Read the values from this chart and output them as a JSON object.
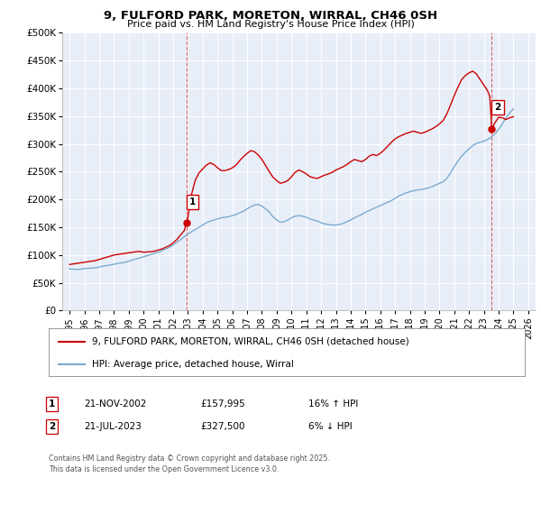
{
  "title": "9, FULFORD PARK, MORETON, WIRRAL, CH46 0SH",
  "subtitle": "Price paid vs. HM Land Registry's House Price Index (HPI)",
  "property_label": "9, FULFORD PARK, MORETON, WIRRAL, CH46 0SH (detached house)",
  "hpi_label": "HPI: Average price, detached house, Wirral",
  "property_color": "#cc0000",
  "hpi_color": "#7aabcf",
  "background_color": "#e8eef8",
  "grid_color": "#ffffff",
  "ylim": [
    0,
    500000
  ],
  "yticks": [
    0,
    50000,
    100000,
    150000,
    200000,
    250000,
    300000,
    350000,
    400000,
    450000,
    500000
  ],
  "ytick_labels": [
    "£0",
    "£50K",
    "£100K",
    "£150K",
    "£200K",
    "£250K",
    "£300K",
    "£350K",
    "£400K",
    "£450K",
    "£500K"
  ],
  "xlim_start": 1994.5,
  "xlim_end": 2026.5,
  "xticks": [
    1995,
    1996,
    1997,
    1998,
    1999,
    2000,
    2001,
    2002,
    2003,
    2004,
    2005,
    2006,
    2007,
    2008,
    2009,
    2010,
    2011,
    2012,
    2013,
    2014,
    2015,
    2016,
    2017,
    2018,
    2019,
    2020,
    2021,
    2022,
    2023,
    2024,
    2025,
    2026
  ],
  "marker1_x": 2002.89,
  "marker1_y": 157995,
  "marker1_label": "1",
  "marker1_date": "21-NOV-2002",
  "marker1_price": "£157,995",
  "marker1_hpi": "16% ↑ HPI",
  "marker2_x": 2023.54,
  "marker2_y": 327500,
  "marker2_label": "2",
  "marker2_date": "21-JUL-2023",
  "marker2_price": "£327,500",
  "marker2_hpi": "6% ↓ HPI",
  "footer": "Contains HM Land Registry data © Crown copyright and database right 2025.\nThis data is licensed under the Open Government Licence v3.0.",
  "hpi_data": [
    [
      1995.0,
      75000
    ],
    [
      1995.25,
      74500
    ],
    [
      1995.5,
      74000
    ],
    [
      1995.75,
      74500
    ],
    [
      1996.0,
      75500
    ],
    [
      1996.25,
      76000
    ],
    [
      1996.5,
      76500
    ],
    [
      1996.75,
      77000
    ],
    [
      1997.0,
      78500
    ],
    [
      1997.25,
      80000
    ],
    [
      1997.5,
      81000
    ],
    [
      1997.75,
      82000
    ],
    [
      1998.0,
      83500
    ],
    [
      1998.25,
      85000
    ],
    [
      1998.5,
      86000
    ],
    [
      1998.75,
      87000
    ],
    [
      1999.0,
      89000
    ],
    [
      1999.25,
      91000
    ],
    [
      1999.5,
      93000
    ],
    [
      1999.75,
      95000
    ],
    [
      2000.0,
      97000
    ],
    [
      2000.25,
      99000
    ],
    [
      2000.5,
      101000
    ],
    [
      2000.75,
      103000
    ],
    [
      2001.0,
      105000
    ],
    [
      2001.25,
      108000
    ],
    [
      2001.5,
      111000
    ],
    [
      2001.75,
      114000
    ],
    [
      2002.0,
      118000
    ],
    [
      2002.25,
      123000
    ],
    [
      2002.5,
      128000
    ],
    [
      2002.75,
      133000
    ],
    [
      2003.0,
      138000
    ],
    [
      2003.25,
      142000
    ],
    [
      2003.5,
      146000
    ],
    [
      2003.75,
      150000
    ],
    [
      2004.0,
      154000
    ],
    [
      2004.25,
      158000
    ],
    [
      2004.5,
      161000
    ],
    [
      2004.75,
      163000
    ],
    [
      2005.0,
      165000
    ],
    [
      2005.25,
      167000
    ],
    [
      2005.5,
      168000
    ],
    [
      2005.75,
      169000
    ],
    [
      2006.0,
      171000
    ],
    [
      2006.25,
      173000
    ],
    [
      2006.5,
      176000
    ],
    [
      2006.75,
      179000
    ],
    [
      2007.0,
      183000
    ],
    [
      2007.25,
      187000
    ],
    [
      2007.5,
      190000
    ],
    [
      2007.75,
      191000
    ],
    [
      2008.0,
      188000
    ],
    [
      2008.25,
      183000
    ],
    [
      2008.5,
      177000
    ],
    [
      2008.75,
      169000
    ],
    [
      2009.0,
      163000
    ],
    [
      2009.25,
      159000
    ],
    [
      2009.5,
      160000
    ],
    [
      2009.75,
      163000
    ],
    [
      2010.0,
      167000
    ],
    [
      2010.25,
      170000
    ],
    [
      2010.5,
      171000
    ],
    [
      2010.75,
      170000
    ],
    [
      2011.0,
      168000
    ],
    [
      2011.25,
      165000
    ],
    [
      2011.5,
      163000
    ],
    [
      2011.75,
      161000
    ],
    [
      2012.0,
      158000
    ],
    [
      2012.25,
      156000
    ],
    [
      2012.5,
      155000
    ],
    [
      2012.75,
      154000
    ],
    [
      2013.0,
      154000
    ],
    [
      2013.25,
      155000
    ],
    [
      2013.5,
      157000
    ],
    [
      2013.75,
      160000
    ],
    [
      2014.0,
      163000
    ],
    [
      2014.25,
      167000
    ],
    [
      2014.5,
      170000
    ],
    [
      2014.75,
      173000
    ],
    [
      2015.0,
      177000
    ],
    [
      2015.25,
      180000
    ],
    [
      2015.5,
      183000
    ],
    [
      2015.75,
      186000
    ],
    [
      2016.0,
      189000
    ],
    [
      2016.25,
      192000
    ],
    [
      2016.5,
      195000
    ],
    [
      2016.75,
      198000
    ],
    [
      2017.0,
      202000
    ],
    [
      2017.25,
      206000
    ],
    [
      2017.5,
      209000
    ],
    [
      2017.75,
      212000
    ],
    [
      2018.0,
      214000
    ],
    [
      2018.25,
      216000
    ],
    [
      2018.5,
      217000
    ],
    [
      2018.75,
      218000
    ],
    [
      2019.0,
      219000
    ],
    [
      2019.25,
      221000
    ],
    [
      2019.5,
      223000
    ],
    [
      2019.75,
      226000
    ],
    [
      2020.0,
      229000
    ],
    [
      2020.25,
      232000
    ],
    [
      2020.5,
      238000
    ],
    [
      2020.75,
      248000
    ],
    [
      2021.0,
      259000
    ],
    [
      2021.25,
      269000
    ],
    [
      2021.5,
      278000
    ],
    [
      2021.75,
      285000
    ],
    [
      2022.0,
      291000
    ],
    [
      2022.25,
      297000
    ],
    [
      2022.5,
      301000
    ],
    [
      2022.75,
      303000
    ],
    [
      2023.0,
      305000
    ],
    [
      2023.25,
      308000
    ],
    [
      2023.5,
      312000
    ],
    [
      2023.75,
      318000
    ],
    [
      2024.0,
      326000
    ],
    [
      2024.25,
      336000
    ],
    [
      2024.5,
      347000
    ],
    [
      2024.75,
      356000
    ],
    [
      2025.0,
      363000
    ]
  ],
  "property_data": [
    [
      1995.0,
      83000
    ],
    [
      1995.25,
      84000
    ],
    [
      1995.5,
      85000
    ],
    [
      1995.75,
      86000
    ],
    [
      1996.0,
      87000
    ],
    [
      1996.25,
      88000
    ],
    [
      1996.5,
      89000
    ],
    [
      1996.75,
      90000
    ],
    [
      1997.0,
      92000
    ],
    [
      1997.25,
      94000
    ],
    [
      1997.5,
      96000
    ],
    [
      1997.75,
      98000
    ],
    [
      1998.0,
      100000
    ],
    [
      1998.25,
      101000
    ],
    [
      1998.5,
      102000
    ],
    [
      1998.75,
      103000
    ],
    [
      1999.0,
      104000
    ],
    [
      1999.25,
      105000
    ],
    [
      1999.5,
      106000
    ],
    [
      1999.75,
      106500
    ],
    [
      2000.0,
      105000
    ],
    [
      2000.25,
      105500
    ],
    [
      2000.5,
      106000
    ],
    [
      2000.75,
      107000
    ],
    [
      2001.0,
      109000
    ],
    [
      2001.25,
      111000
    ],
    [
      2001.5,
      114000
    ],
    [
      2001.75,
      117000
    ],
    [
      2002.0,
      122000
    ],
    [
      2002.25,
      128000
    ],
    [
      2002.5,
      136000
    ],
    [
      2002.75,
      144000
    ],
    [
      2002.89,
      157995
    ],
    [
      2003.0,
      168000
    ],
    [
      2003.1,
      185000
    ],
    [
      2003.25,
      210000
    ],
    [
      2003.5,
      235000
    ],
    [
      2003.75,
      248000
    ],
    [
      2004.0,
      255000
    ],
    [
      2004.25,
      262000
    ],
    [
      2004.5,
      266000
    ],
    [
      2004.75,
      263000
    ],
    [
      2005.0,
      257000
    ],
    [
      2005.25,
      252000
    ],
    [
      2005.5,
      252000
    ],
    [
      2005.75,
      254000
    ],
    [
      2006.0,
      257000
    ],
    [
      2006.25,
      262000
    ],
    [
      2006.5,
      270000
    ],
    [
      2006.75,
      277000
    ],
    [
      2007.0,
      283000
    ],
    [
      2007.25,
      288000
    ],
    [
      2007.5,
      286000
    ],
    [
      2007.75,
      280000
    ],
    [
      2008.0,
      272000
    ],
    [
      2008.25,
      261000
    ],
    [
      2008.5,
      250000
    ],
    [
      2008.75,
      240000
    ],
    [
      2009.0,
      234000
    ],
    [
      2009.25,
      229000
    ],
    [
      2009.5,
      231000
    ],
    [
      2009.75,
      234000
    ],
    [
      2010.0,
      241000
    ],
    [
      2010.25,
      249000
    ],
    [
      2010.5,
      253000
    ],
    [
      2010.75,
      250000
    ],
    [
      2011.0,
      246000
    ],
    [
      2011.25,
      241000
    ],
    [
      2011.5,
      239000
    ],
    [
      2011.75,
      238000
    ],
    [
      2012.0,
      241000
    ],
    [
      2012.25,
      244000
    ],
    [
      2012.5,
      246000
    ],
    [
      2012.75,
      249000
    ],
    [
      2013.0,
      253000
    ],
    [
      2013.25,
      256000
    ],
    [
      2013.5,
      259000
    ],
    [
      2013.75,
      263000
    ],
    [
      2014.0,
      268000
    ],
    [
      2014.25,
      272000
    ],
    [
      2014.5,
      270000
    ],
    [
      2014.75,
      268000
    ],
    [
      2015.0,
      272000
    ],
    [
      2015.25,
      278000
    ],
    [
      2015.5,
      281000
    ],
    [
      2015.75,
      279000
    ],
    [
      2016.0,
      283000
    ],
    [
      2016.25,
      289000
    ],
    [
      2016.5,
      296000
    ],
    [
      2016.75,
      303000
    ],
    [
      2017.0,
      309000
    ],
    [
      2017.25,
      313000
    ],
    [
      2017.5,
      316000
    ],
    [
      2017.75,
      319000
    ],
    [
      2018.0,
      321000
    ],
    [
      2018.25,
      323000
    ],
    [
      2018.5,
      321000
    ],
    [
      2018.75,
      319000
    ],
    [
      2019.0,
      321000
    ],
    [
      2019.25,
      324000
    ],
    [
      2019.5,
      327000
    ],
    [
      2019.75,
      331000
    ],
    [
      2020.0,
      336000
    ],
    [
      2020.25,
      342000
    ],
    [
      2020.5,
      354000
    ],
    [
      2020.75,
      370000
    ],
    [
      2021.0,
      387000
    ],
    [
      2021.25,
      402000
    ],
    [
      2021.5,
      416000
    ],
    [
      2021.75,
      423000
    ],
    [
      2022.0,
      428000
    ],
    [
      2022.25,
      431000
    ],
    [
      2022.5,
      426000
    ],
    [
      2022.75,
      416000
    ],
    [
      2023.0,
      406000
    ],
    [
      2023.25,
      396000
    ],
    [
      2023.4,
      386000
    ],
    [
      2023.54,
      327500
    ],
    [
      2023.75,
      338000
    ],
    [
      2024.0,
      348000
    ],
    [
      2024.25,
      347000
    ],
    [
      2024.5,
      344000
    ],
    [
      2024.75,
      347000
    ],
    [
      2025.0,
      349000
    ]
  ]
}
